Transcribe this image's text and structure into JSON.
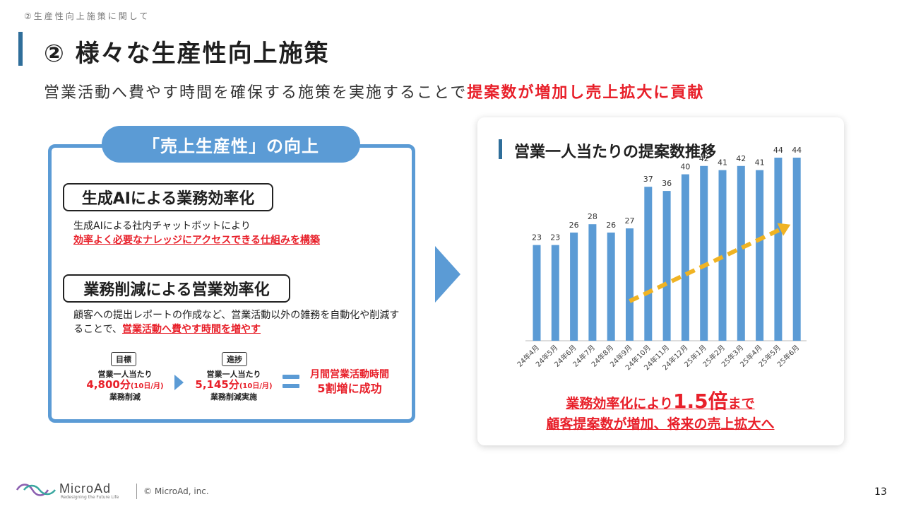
{
  "header": {
    "section": "②生産性向上施策に関して",
    "title": "② 様々な生産性向上施策",
    "lead_text": "営業活動へ費やす時間を確保する施策を実施することで",
    "lead_highlight": "提案数が増加し売上拡大に貢献"
  },
  "left_panel": {
    "pill": "「売上生産性」の向上",
    "item1": {
      "heading": "生成AIによる業務効率化",
      "desc_line1": "生成AIによる社内チャットボットにより",
      "desc_highlight": "効率よく必要なナレッジにアクセスできる仕組みを構築"
    },
    "item2": {
      "heading": "業務削減による営業効率化",
      "desc_text": "顧客への提出レポートの作成など、営業活動以外の雑務を自動化や削減することで、",
      "desc_highlight": "営業活動へ費やす時間を増やす"
    },
    "target": {
      "tag": "目標",
      "line1": "営業一人当たり",
      "value": "4,800分",
      "unit": "(10日/月)",
      "line3": "業務削減"
    },
    "progress": {
      "tag": "進捗",
      "line1": "営業一人当たり",
      "value": "5,145分",
      "unit": "(10日/月)",
      "line3": "業務削減実施"
    },
    "result": {
      "line1": "月間営業活動時間",
      "line2_red": "5割増",
      "line2_rest": "に成功"
    }
  },
  "right_panel": {
    "title": "営業一人当たりの提案数推移",
    "conclusion_pre": "業務効率化により",
    "conclusion_mult": "1.5倍",
    "conclusion_post": "まで",
    "conclusion_line2": "顧客提案数が増加、将来の売上拡大へ"
  },
  "chart_data": {
    "type": "bar",
    "title": "営業一人当たりの提案数推移",
    "categories": [
      "24年4月",
      "24年5月",
      "24年6月",
      "24年7月",
      "24年8月",
      "24年9月",
      "24年10月",
      "24年11月",
      "24年12月",
      "25年1月",
      "25年2月",
      "25年3月",
      "25年4月",
      "25年5月",
      "25年6月"
    ],
    "values": [
      23,
      23,
      26,
      28,
      26,
      27,
      37,
      36,
      40,
      42,
      41,
      42,
      41,
      44,
      44
    ],
    "ylim": [
      0,
      50
    ],
    "grid": false,
    "bar_color": "#5b9bd5",
    "trend_arrow_color": "#f0b323",
    "trend_from": "24年9月",
    "trend_to": "25年6月"
  },
  "footer": {
    "logo": "MicroAd",
    "logo_tagline": "Redesigning the Future Life",
    "copyright": "© MicroAd, inc.",
    "page": "13"
  }
}
